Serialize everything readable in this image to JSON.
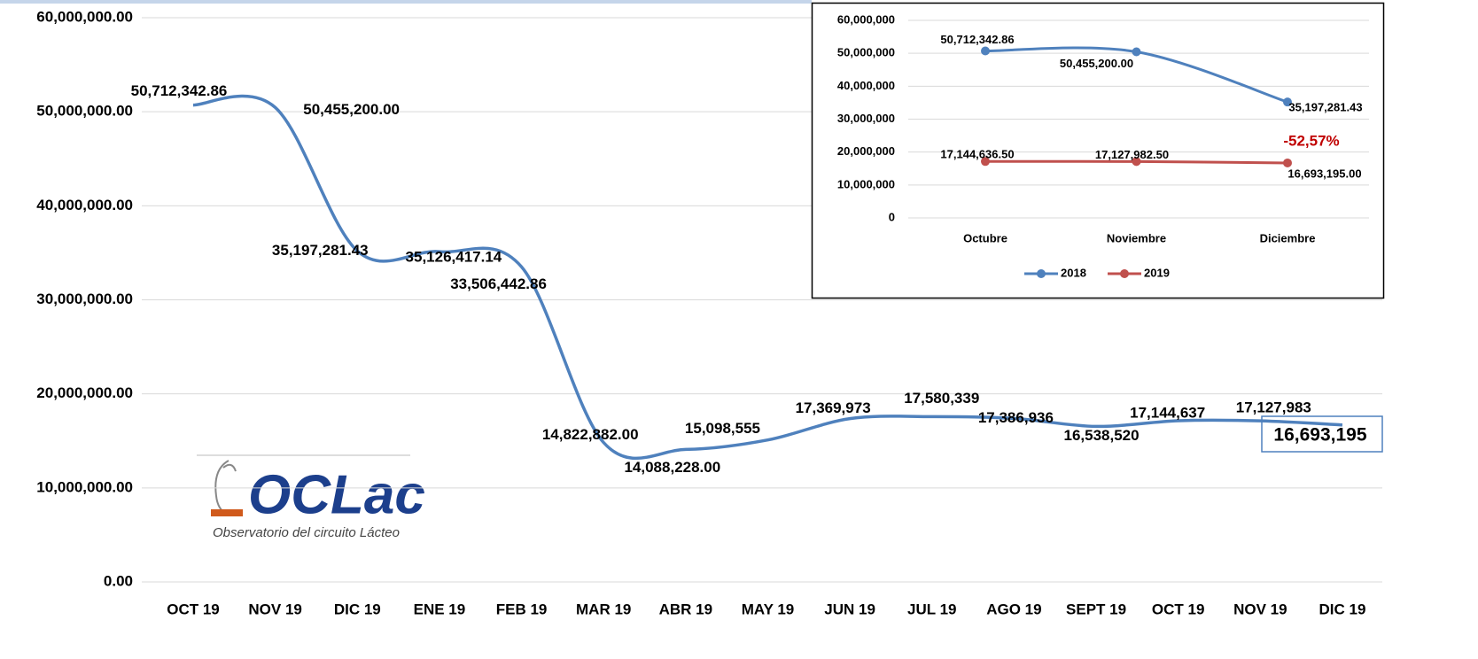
{
  "chart_data": [
    {
      "type": "line",
      "categories": [
        "OCT 19",
        "NOV  19",
        "DIC  19",
        "ENE  19",
        "FEB  19",
        "MAR 19",
        "ABR 19",
        "MAY 19",
        "JUN 19",
        "JUL 19",
        "AGO 19",
        "SEPT 19",
        "OCT 19",
        "NOV 19",
        "DIC 19"
      ],
      "values": [
        50712342.86,
        50455200.0,
        35197281.43,
        35126417.14,
        33506442.86,
        14822882.0,
        14088228.0,
        15098555,
        17369973,
        17580339,
        17386936,
        16538520,
        17144637,
        17127983,
        16693195
      ],
      "value_labels": [
        "50,712,342.86",
        "50,455,200.00",
        "35,197,281.43",
        "35,126,417.14",
        "33,506,442.86",
        "14,822,882.00",
        "14,088,228.00",
        "15,098,555",
        "17,369,973",
        "17,580,339",
        "17,386,936",
        "16,538,520",
        "17,144,637",
        "17,127,983",
        "16,693,195"
      ],
      "color": "#4f81bd",
      "ylim": [
        0,
        60000000
      ],
      "yticks": [
        {
          "value": 0,
          "label": "0.00"
        },
        {
          "value": 10000000,
          "label": "10,000,000.00"
        },
        {
          "value": 20000000,
          "label": "20,000,000.00"
        },
        {
          "value": 30000000,
          "label": "30,000,000.00"
        },
        {
          "value": 40000000,
          "label": "40,000,000.00"
        },
        {
          "value": 50000000,
          "label": "50,000,000.00"
        },
        {
          "value": 60000000,
          "label": "60,000,000.00"
        }
      ],
      "grid": true
    },
    {
      "type": "line",
      "categories": [
        "Octubre",
        "Noviembre",
        "Diciembre"
      ],
      "series": [
        {
          "name": "2018",
          "color": "#4f81bd",
          "values": [
            50712342.86,
            50455200.0,
            35197281.43
          ],
          "value_labels": [
            "50,712,342.86",
            "50,455,200.00",
            "35,197,281.43"
          ]
        },
        {
          "name": "2019",
          "color": "#c0504d",
          "values": [
            17144636.5,
            17127982.5,
            16693195.0
          ],
          "value_labels": [
            "17,144,636.50",
            "17,127,982.50",
            "16,693,195.00"
          ]
        }
      ],
      "annotation": "-52,57%",
      "ylim": [
        0,
        60000000
      ],
      "yticks": [
        0,
        {
          "value": 10000000,
          "label": "10,000,000"
        },
        {
          "value": 20000000,
          "label": "20,000,000"
        },
        {
          "value": 30000000,
          "label": "30,000,000"
        },
        {
          "value": 40000000,
          "label": "40,000,000"
        },
        {
          "value": 50000000,
          "label": "50,000,000"
        },
        {
          "value": 60000000,
          "label": "60,000,000"
        }
      ],
      "grid": true,
      "legend": "bottom"
    }
  ],
  "logo": {
    "name": "OCLac",
    "subtitle": "Observatorio del circuito Lácteo"
  }
}
